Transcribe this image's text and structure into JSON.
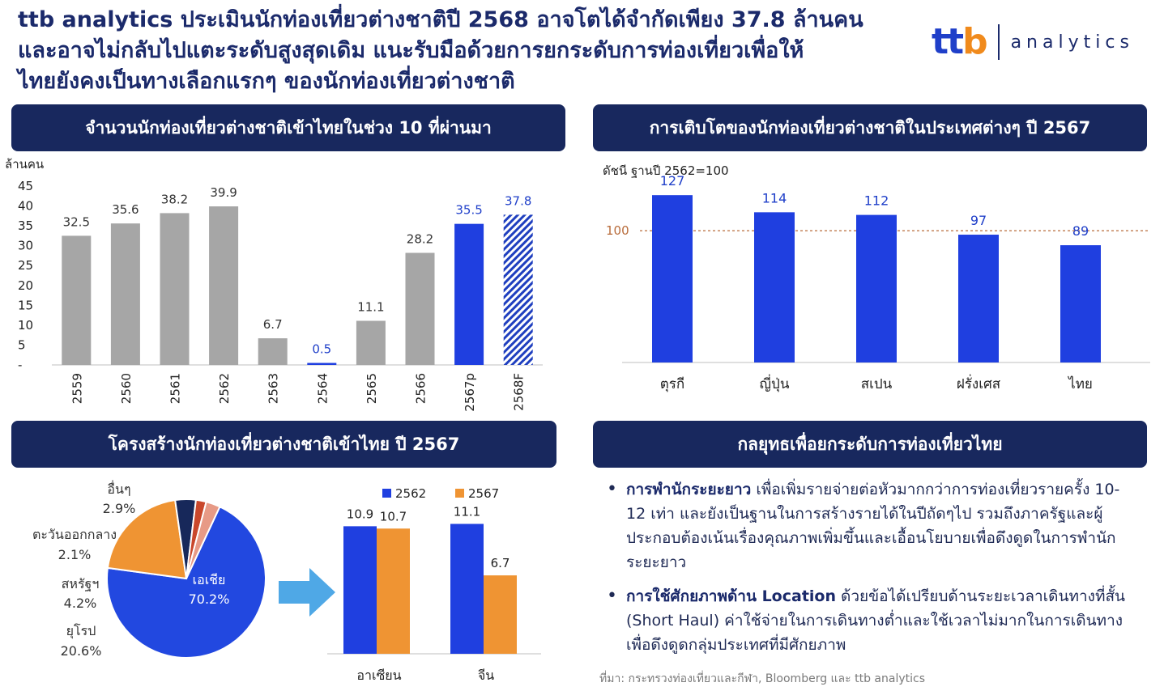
{
  "title": {
    "line1": "ttb analytics ประเมินนักท่องเที่ยวต่างชาติปี 2568 อาจโตได้จำกัดเพียง 37.8 ล้านคน",
    "line2": "และอาจไม่กลับไปแตะระดับสูงสุดเดิม แนะรับมือด้วยการยกระดับการท่องเที่ยวเพื่อให้",
    "line3": "ไทยยังคงเป็นทางเลือกแรกๆ ของนักท่องเที่ยวต่างชาติ"
  },
  "logo": {
    "mark_t1": "tt",
    "mark_b": "b",
    "text": "analytics"
  },
  "panels": {
    "p1": "จำนวนนักท่องเที่ยวต่างชาติเข้าไทยในช่วง 10 ที่ผ่านมา",
    "p2": "การเติบโตของนักท่องเที่ยวต่างชาติในประเทศต่างๆ ปี 2567",
    "p3": "โครงสร้างนักท่องเที่ยวต่างชาติเข้าไทย ปี 2567",
    "p4": "กลยุทธเพื่อยกระดับการท่องเที่ยวไทย"
  },
  "colors": {
    "gray": "#a6a6a6",
    "blue": "#1f3fe0",
    "orange": "#ef9433",
    "navy": "#18285e",
    "pie_blue": "#2248e0",
    "pie_orange": "#ef9433",
    "pie_navy": "#17285a",
    "pie_red": "#c9472b",
    "pie_pink": "#e79a86",
    "dashed": "#b86b3a"
  },
  "chart_data": [
    {
      "type": "bar",
      "ylabel": "ล้านคน",
      "ylim": [
        0,
        45
      ],
      "yticks": [
        "-",
        "5",
        "10",
        "15",
        "20",
        "25",
        "30",
        "35",
        "40",
        "45"
      ],
      "categories": [
        "2559",
        "2560",
        "2561",
        "2562",
        "2563",
        "2564",
        "2565",
        "2566",
        "2567p",
        "2568F"
      ],
      "values": [
        32.5,
        35.6,
        38.2,
        39.9,
        6.7,
        0.5,
        11.1,
        28.2,
        35.5,
        37.8
      ],
      "labels": [
        "32.5",
        "35.6",
        "38.2",
        "39.9",
        "6.7",
        "0.5",
        "11.1",
        "28.2",
        "35.5",
        "37.8"
      ],
      "styles": [
        "gray",
        "gray",
        "gray",
        "gray",
        "gray",
        "blue",
        "gray",
        "gray",
        "blue",
        "hatched"
      ]
    },
    {
      "type": "bar",
      "subtitle": "ดัชนี ฐานปี 2562=100",
      "reference_line": {
        "value": 100,
        "label": "100"
      },
      "ylim": [
        0,
        140
      ],
      "categories": [
        "ตุรกี",
        "ญี่ปุ่น",
        "สเปน",
        "ฝรั่งเศส",
        "ไทย"
      ],
      "values": [
        127,
        114,
        112,
        97,
        89
      ],
      "labels": [
        "127",
        "114",
        "112",
        "97",
        "89"
      ]
    },
    {
      "type": "pie",
      "slices": [
        {
          "name": "เอเชีย",
          "value": 70.2,
          "label": "70.2%",
          "color": "#2248e0"
        },
        {
          "name": "ยุโรป",
          "value": 20.6,
          "label": "20.6%",
          "color": "#ef9433"
        },
        {
          "name": "สหรัฐฯ",
          "value": 4.2,
          "label": "4.2%",
          "color": "#17285a"
        },
        {
          "name": "ตะวันออกกลาง",
          "value": 2.1,
          "label": "2.1%",
          "color": "#c9472b"
        },
        {
          "name": "อื่นๆ",
          "value": 2.9,
          "label": "2.9%",
          "color": "#e79a86"
        }
      ]
    },
    {
      "type": "bar",
      "categories": [
        "อาเซียน",
        "จีน"
      ],
      "ylim": [
        0,
        13
      ],
      "series": [
        {
          "name": "2562",
          "values": [
            10.9,
            11.1
          ],
          "labels": [
            "10.9",
            "11.1"
          ],
          "color": "#1f3fe0"
        },
        {
          "name": "2567",
          "values": [
            10.7,
            6.7
          ],
          "labels": [
            "10.7",
            "6.7"
          ],
          "color": "#ef9433"
        }
      ]
    }
  ],
  "strategy": {
    "item1_bold": "การพำนักระยะยาว",
    "item1_text": " เพื่อเพิ่มรายจ่ายต่อหัวมากกว่าการท่องเที่ยวรายครั้ง 10-12 เท่า  และยังเป็นฐานในการสร้างรายได้ในปีถัดๆไป รวมถึงภาครัฐและผู้ประกอบต้องเน้นเรื่องคุณภาพเพิ่มขึ้นและเอื้อนโยบายเพื่อดึงดูดในการพำนักระยะยาว",
    "item2_bold": "การใช้ศักยภาพด้าน Location",
    "item2_text": " ด้วยข้อได้เปรียบด้านระยะเวลาเดินทางที่สั้น (Short Haul) ค่าใช้จ่ายในการเดินทางต่ำและใช้เวลาไม่มากในการเดินทาง เพื่อดึงดูดกลุ่มประเทศที่มีศักยภาพ"
  },
  "source": "ที่มา: กระทรวงท่องเที่ยวและกีฬา, Bloomberg และ ttb analytics"
}
